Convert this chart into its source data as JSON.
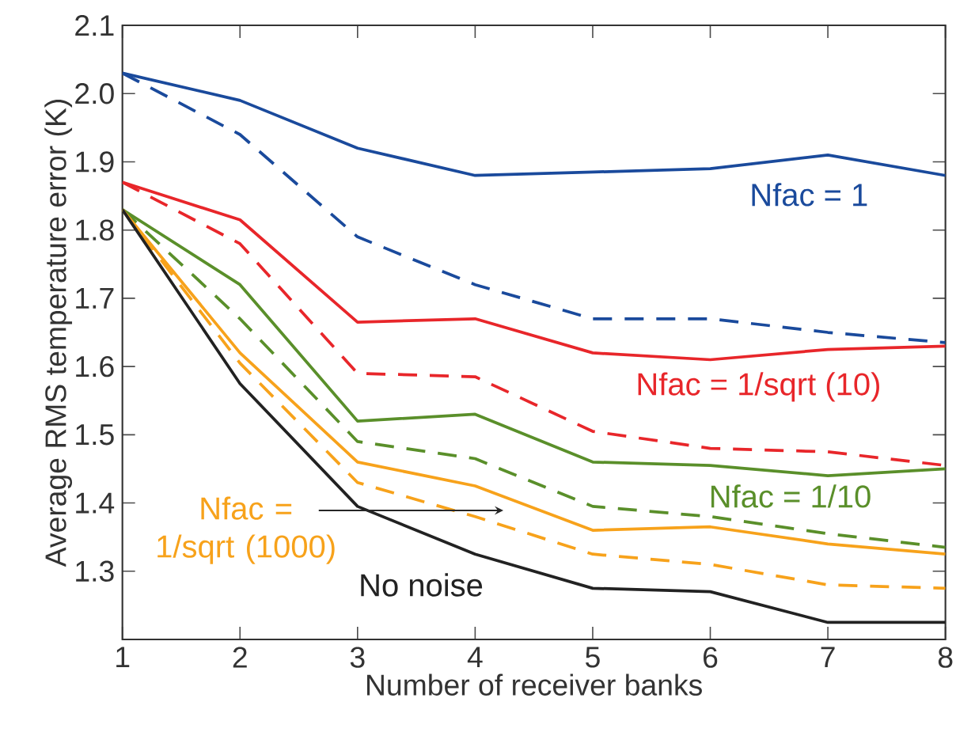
{
  "chart_data": {
    "type": "line",
    "xlabel": "Number of receiver banks",
    "ylabel": "Average RMS temperature error (K)",
    "x": [
      1,
      2,
      3,
      4,
      5,
      6,
      7,
      8
    ],
    "xlim": [
      1,
      8
    ],
    "ylim": [
      1.2,
      2.1
    ],
    "xticks": [
      1,
      2,
      3,
      4,
      5,
      6,
      7,
      8
    ],
    "yticks": [
      1.3,
      1.4,
      1.5,
      1.6,
      1.7,
      1.8,
      1.9,
      {
        "value": 2.0,
        "label": "2.0"
      },
      2.1
    ],
    "grid": false,
    "legend": false,
    "marker": "none",
    "series": [
      {
        "name": "Nfac = 1",
        "color": "#1a4a9c",
        "line_style": "solid",
        "values": [
          2.03,
          1.99,
          1.92,
          1.88,
          1.885,
          1.89,
          1.91,
          1.88
        ]
      },
      {
        "color": "#1a4a9c",
        "line_style": "dashed",
        "values": [
          2.03,
          1.94,
          1.79,
          1.72,
          1.67,
          1.67,
          1.65,
          1.635
        ]
      },
      {
        "name": "Nfac = 1/sqrt (10)",
        "color": "#e8262a",
        "line_style": "solid",
        "values": [
          1.87,
          1.815,
          1.665,
          1.67,
          1.62,
          1.61,
          1.625,
          1.63
        ]
      },
      {
        "color": "#e8262a",
        "line_style": "dashed",
        "values": [
          1.87,
          1.78,
          1.59,
          1.585,
          1.505,
          1.48,
          1.475,
          1.455
        ]
      },
      {
        "name": "Nfac = 1/10",
        "color": "#5a8f2a",
        "line_style": "solid",
        "values": [
          1.83,
          1.72,
          1.52,
          1.53,
          1.46,
          1.455,
          1.44,
          1.45
        ]
      },
      {
        "color": "#5a8f2a",
        "line_style": "dashed",
        "values": [
          1.83,
          1.67,
          1.49,
          1.465,
          1.395,
          1.38,
          1.355,
          1.335
        ]
      },
      {
        "name": "Nfac = 1/sqrt (1000)",
        "color": "#f7a21b",
        "line_style": "solid",
        "values": [
          1.83,
          1.62,
          1.46,
          1.425,
          1.36,
          1.365,
          1.34,
          1.325
        ]
      },
      {
        "color": "#f7a21b",
        "line_style": "dashed",
        "values": [
          1.83,
          1.605,
          1.43,
          1.38,
          1.325,
          1.31,
          1.28,
          1.275
        ]
      },
      {
        "name": "No noise",
        "color": "#222222",
        "line_style": "solid",
        "values": [
          1.83,
          1.575,
          1.395,
          1.325,
          1.275,
          1.27,
          1.225,
          1.225
        ]
      }
    ]
  }
}
